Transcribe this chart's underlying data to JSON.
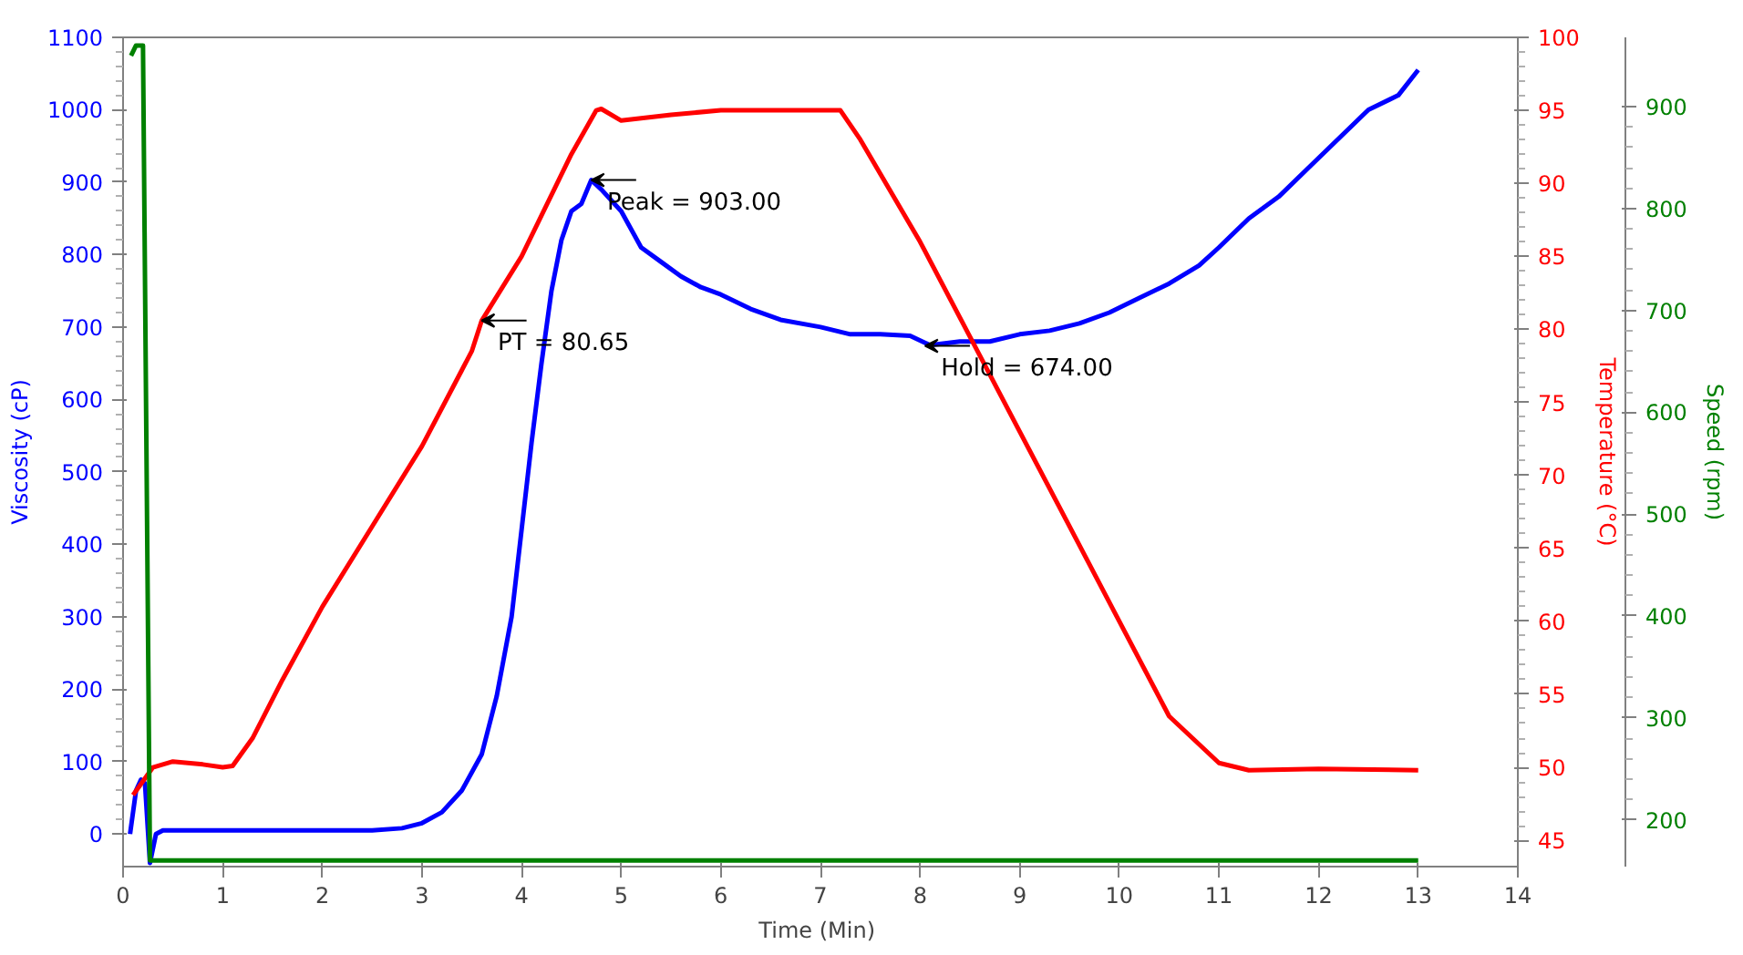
{
  "chart_data": {
    "type": "line",
    "xlabel": "Time  (Min)",
    "ylabel": "Viscosity (cP)",
    "y2label": "Temperature (°C)",
    "y3label": "Speed (rpm)",
    "xlim": [
      0,
      14
    ],
    "xticks": [
      0,
      1,
      2,
      3,
      4,
      5,
      6,
      7,
      8,
      9,
      10,
      11,
      12,
      13,
      14
    ],
    "ylim": [
      -45,
      1100
    ],
    "yticks": [
      0,
      100,
      200,
      300,
      400,
      500,
      600,
      700,
      800,
      900,
      1000,
      1100
    ],
    "y2lim": [
      43.2,
      100
    ],
    "y2ticks": [
      45,
      50,
      55,
      60,
      65,
      70,
      75,
      80,
      85,
      90,
      95,
      100
    ],
    "y3lim": [
      154,
      968
    ],
    "y3ticks": [
      200,
      300,
      400,
      500,
      600,
      700,
      800,
      900
    ],
    "grid": false,
    "marker": "none",
    "line_style": "solid",
    "series": [
      {
        "color": "#0000ff",
        "x": [
          0.07,
          0.13,
          0.18,
          0.22,
          0.27,
          0.33,
          0.4,
          1,
          2,
          2.5,
          2.8,
          3.0,
          3.2,
          3.4,
          3.6,
          3.75,
          3.9,
          4.0,
          4.1,
          4.2,
          4.3,
          4.4,
          4.5,
          4.6,
          4.7,
          4.8,
          5.0,
          5.2,
          5.4,
          5.6,
          5.8,
          6.0,
          6.3,
          6.6,
          7.0,
          7.3,
          7.6,
          7.9,
          8.1,
          8.4,
          8.7,
          9.0,
          9.3,
          9.6,
          9.9,
          10.2,
          10.5,
          10.8,
          11.0,
          11.3,
          11.6,
          11.9,
          12.2,
          12.5,
          12.8,
          13.0
        ],
        "values": [
          0,
          60,
          75,
          70,
          -40,
          0,
          5,
          5,
          5,
          5,
          8,
          15,
          30,
          60,
          110,
          190,
          300,
          420,
          540,
          650,
          750,
          820,
          860,
          870,
          903,
          890,
          860,
          810,
          790,
          770,
          755,
          745,
          725,
          710,
          700,
          690,
          690,
          688,
          675,
          680,
          680,
          690,
          695,
          705,
          720,
          740,
          760,
          785,
          810,
          850,
          880,
          920,
          960,
          1000,
          1020,
          1055
        ]
      },
      {
        "color": "#ff0000",
        "axis": "y2",
        "x": [
          0.1,
          0.3,
          0.5,
          0.8,
          1.0,
          1.1,
          1.3,
          1.6,
          2,
          2.5,
          3,
          3.5,
          3.6,
          4.0,
          4.5,
          4.75,
          4.8,
          5,
          5.5,
          6,
          7,
          7.2,
          7.4,
          8,
          8.5,
          9,
          9.5,
          10,
          10.5,
          11,
          11.3,
          12,
          13
        ],
        "values": [
          48.1,
          50,
          50.4,
          50.2,
          50,
          50.1,
          52,
          56,
          61,
          66.5,
          72,
          78.5,
          80.6,
          85,
          92,
          95,
          95.1,
          94.3,
          94.7,
          95,
          95,
          95,
          93,
          86,
          79.5,
          73,
          66.5,
          60,
          53.5,
          50.3,
          49.8,
          49.9,
          49.8
        ]
      },
      {
        "color": "#008000",
        "axis": "y3",
        "x": [
          0.08,
          0.13,
          0.2,
          0.27,
          13.0
        ],
        "values": [
          950,
          960,
          960,
          160,
          160
        ]
      }
    ],
    "annotations": [
      {
        "text": "Peak = 903.00",
        "x": 4.7,
        "y": 903
      },
      {
        "text": "PT = 80.65",
        "x": 3.6,
        "y": 709
      },
      {
        "text": "Hold = 674.00",
        "x": 8.05,
        "y": 674
      }
    ]
  }
}
